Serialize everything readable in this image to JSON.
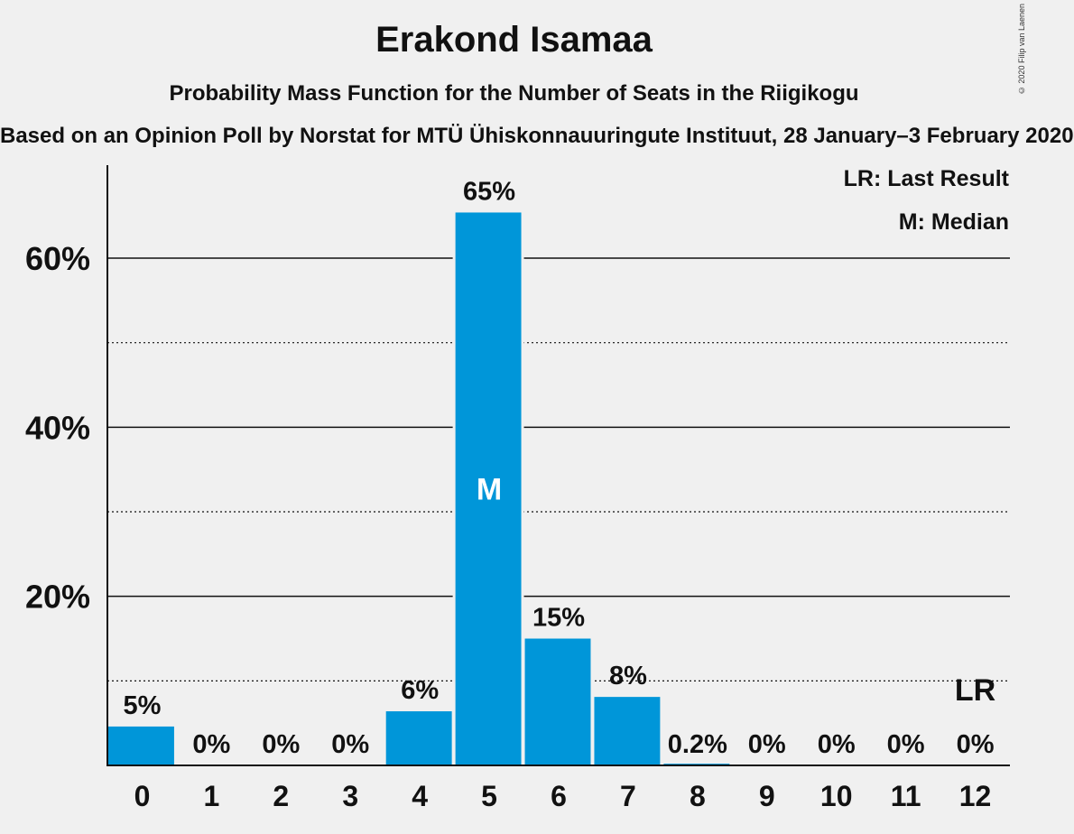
{
  "title": "Erakond Isamaa",
  "subtitle": "Probability Mass Function for the Number of Seats in the Riigikogu",
  "source": "Based on an Opinion Poll by Norstat for MTÜ Ühiskonnauuringute Instituut, 28 January–3 February 2020",
  "copyright": "© 2020 Filip van Laenen",
  "legend": {
    "last_result": "LR: Last Result",
    "median": "M: Median"
  },
  "colors": {
    "bar": "#0096d9",
    "background": "#f0f0f0"
  },
  "chart_data": {
    "type": "bar",
    "title": "Erakond Isamaa",
    "categories": [
      "0",
      "1",
      "2",
      "3",
      "4",
      "5",
      "6",
      "7",
      "8",
      "9",
      "10",
      "11",
      "12"
    ],
    "values": [
      4.6,
      0,
      0,
      0,
      6.4,
      65.4,
      15.0,
      8.1,
      0.2,
      0,
      0,
      0,
      0
    ],
    "value_labels": [
      "5%",
      "0%",
      "0%",
      "0%",
      "6%",
      "65%",
      "15%",
      "8%",
      "0.2%",
      "0%",
      "0%",
      "0%",
      "0%"
    ],
    "ylim": [
      0,
      71
    ],
    "yticks": [
      20,
      40,
      60
    ],
    "ytick_labels": [
      "20%",
      "40%",
      "60%"
    ],
    "minor_gridlines": [
      10,
      30,
      50
    ],
    "median_seat": "5",
    "median_marker": "M",
    "last_result_seat": "12",
    "last_result_marker": "LR",
    "xlabel": "",
    "ylabel": ""
  }
}
